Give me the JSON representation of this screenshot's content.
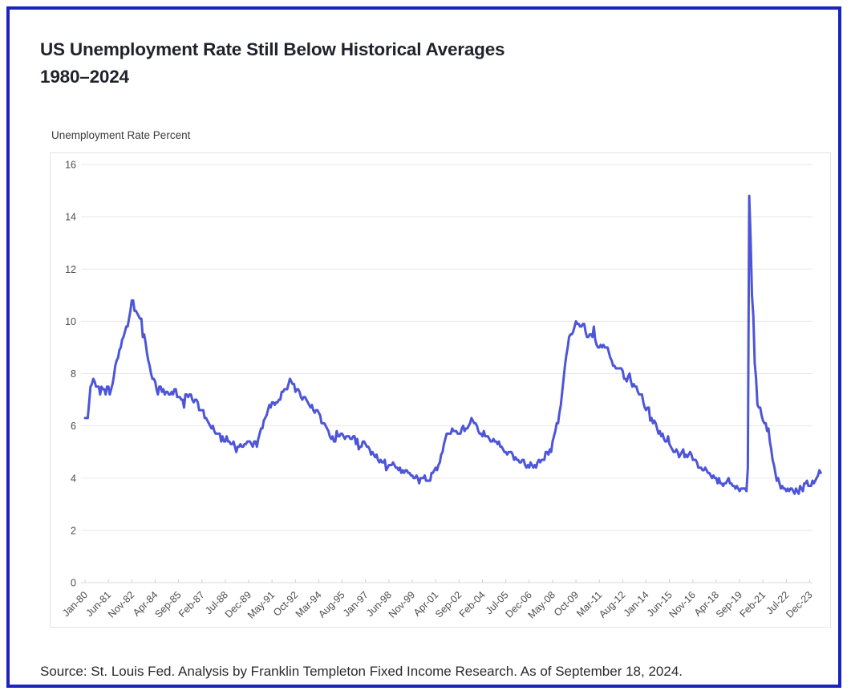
{
  "header": {
    "title_line1": "US Unemployment Rate Still Below Historical Averages",
    "title_line2": "1980–2024"
  },
  "footer": {
    "source": "Source: St. Louis Fed. Analysis by Franklin Templeton Fixed Income Research. As of September 18, 2024."
  },
  "colors": {
    "frame_border": "#1b23c0",
    "line": "#4d55d8",
    "grid": "#e8e8e8",
    "baseline": "#d9d9d9",
    "tick": "#cfcfcf",
    "axis_text": "#4d4d4d",
    "plot_border": "#e3e3e3"
  },
  "chart_data": {
    "type": "line",
    "title": "US Unemployment Rate Still Below Historical Averages 1980–2024",
    "ylabel": "Unemployment Rate Percent",
    "xlabel": "",
    "ylim": [
      0,
      16
    ],
    "yticks": [
      0,
      2,
      4,
      6,
      8,
      10,
      12,
      14,
      16
    ],
    "grid": true,
    "legend_position": "none",
    "x_tick_labels": [
      "Jan-80",
      "Jun-81",
      "Nov-82",
      "Apr-84",
      "Sep-85",
      "Feb-87",
      "Jul-88",
      "Dec-89",
      "May-91",
      "Oct-92",
      "Mar-94",
      "Aug-95",
      "Jan-97",
      "Jun-98",
      "Nov-99",
      "Apr-01",
      "Sep-02",
      "Feb-04",
      "Jul-05",
      "Dec-06",
      "May-08",
      "Oct-09",
      "Mar-11",
      "Aug-12",
      "Jan-14",
      "Jun-15",
      "Nov-16",
      "Apr-18",
      "Sep-19",
      "Feb-21",
      "Jul-22",
      "Dec-23"
    ],
    "x_tick_interval_months": 17,
    "series": [
      {
        "name": "US Unemployment Rate Percent",
        "start": "Jan-1980",
        "end": "Aug-2024",
        "frequency": "monthly",
        "values": [
          6.3,
          6.3,
          6.3,
          6.9,
          7.5,
          7.6,
          7.8,
          7.7,
          7.5,
          7.5,
          7.5,
          7.2,
          7.5,
          7.4,
          7.4,
          7.2,
          7.5,
          7.5,
          7.2,
          7.4,
          7.6,
          7.9,
          8.3,
          8.5,
          8.6,
          8.9,
          9.0,
          9.3,
          9.4,
          9.6,
          9.8,
          9.8,
          10.1,
          10.4,
          10.8,
          10.8,
          10.4,
          10.4,
          10.3,
          10.2,
          10.1,
          10.1,
          9.4,
          9.5,
          9.2,
          8.8,
          8.5,
          8.3,
          8.0,
          7.8,
          7.8,
          7.7,
          7.4,
          7.2,
          7.5,
          7.5,
          7.3,
          7.4,
          7.2,
          7.3,
          7.3,
          7.2,
          7.2,
          7.3,
          7.2,
          7.4,
          7.4,
          7.1,
          7.1,
          7.1,
          7.0,
          7.0,
          6.7,
          7.2,
          7.2,
          7.1,
          7.2,
          7.2,
          7.0,
          6.9,
          7.0,
          7.0,
          6.9,
          6.6,
          6.6,
          6.6,
          6.6,
          6.3,
          6.3,
          6.2,
          6.1,
          6.0,
          5.9,
          6.0,
          5.8,
          5.7,
          5.7,
          5.7,
          5.7,
          5.4,
          5.6,
          5.4,
          5.4,
          5.6,
          5.4,
          5.4,
          5.3,
          5.3,
          5.4,
          5.2,
          5.0,
          5.2,
          5.2,
          5.3,
          5.2,
          5.2,
          5.3,
          5.3,
          5.4,
          5.4,
          5.4,
          5.3,
          5.2,
          5.4,
          5.4,
          5.2,
          5.5,
          5.7,
          5.9,
          5.9,
          6.2,
          6.3,
          6.4,
          6.6,
          6.8,
          6.7,
          6.9,
          6.9,
          6.8,
          6.9,
          6.9,
          7.0,
          7.0,
          7.3,
          7.3,
          7.4,
          7.4,
          7.4,
          7.6,
          7.8,
          7.7,
          7.6,
          7.6,
          7.3,
          7.4,
          7.4,
          7.3,
          7.1,
          7.0,
          7.1,
          7.1,
          7.0,
          6.9,
          6.8,
          6.7,
          6.8,
          6.6,
          6.5,
          6.6,
          6.6,
          6.5,
          6.4,
          6.1,
          6.1,
          6.1,
          6.0,
          5.9,
          5.8,
          5.6,
          5.5,
          5.6,
          5.4,
          5.4,
          5.8,
          5.6,
          5.6,
          5.7,
          5.7,
          5.6,
          5.5,
          5.6,
          5.6,
          5.6,
          5.5,
          5.5,
          5.6,
          5.6,
          5.3,
          5.5,
          5.1,
          5.2,
          5.2,
          5.4,
          5.4,
          5.3,
          5.2,
          5.2,
          5.1,
          4.9,
          5.0,
          4.9,
          4.8,
          4.9,
          4.7,
          4.6,
          4.7,
          4.6,
          4.6,
          4.7,
          4.3,
          4.4,
          4.5,
          4.5,
          4.5,
          4.6,
          4.5,
          4.4,
          4.4,
          4.3,
          4.4,
          4.2,
          4.3,
          4.2,
          4.3,
          4.3,
          4.2,
          4.2,
          4.1,
          4.1,
          4.0,
          4.0,
          4.1,
          4.0,
          3.8,
          4.0,
          4.0,
          4.0,
          4.1,
          3.9,
          3.9,
          3.9,
          3.9,
          4.2,
          4.2,
          4.3,
          4.4,
          4.3,
          4.5,
          4.6,
          4.9,
          5.0,
          5.3,
          5.5,
          5.7,
          5.7,
          5.7,
          5.7,
          5.9,
          5.8,
          5.8,
          5.8,
          5.7,
          5.7,
          5.7,
          5.9,
          6.0,
          5.8,
          5.9,
          5.9,
          6.0,
          6.1,
          6.3,
          6.2,
          6.1,
          6.1,
          6.0,
          5.8,
          5.7,
          5.7,
          5.6,
          5.8,
          5.6,
          5.6,
          5.6,
          5.5,
          5.4,
          5.4,
          5.5,
          5.4,
          5.4,
          5.3,
          5.4,
          5.2,
          5.2,
          5.1,
          5.0,
          5.0,
          4.9,
          5.0,
          5.0,
          5.0,
          4.9,
          4.7,
          4.8,
          4.7,
          4.7,
          4.6,
          4.6,
          4.7,
          4.7,
          4.5,
          4.4,
          4.5,
          4.4,
          4.6,
          4.5,
          4.4,
          4.5,
          4.4,
          4.6,
          4.7,
          4.6,
          4.7,
          4.7,
          4.7,
          5.0,
          5.0,
          4.9,
          5.1,
          5.0,
          5.4,
          5.6,
          5.8,
          6.1,
          6.1,
          6.5,
          6.8,
          7.3,
          7.8,
          8.3,
          8.7,
          9.0,
          9.4,
          9.5,
          9.5,
          9.6,
          9.8,
          10.0,
          9.9,
          9.9,
          9.8,
          9.8,
          9.9,
          9.9,
          9.6,
          9.4,
          9.4,
          9.5,
          9.5,
          9.4,
          9.8,
          9.3,
          9.1,
          9.0,
          9.0,
          9.1,
          9.0,
          9.1,
          9.0,
          9.0,
          9.0,
          8.8,
          8.6,
          8.5,
          8.3,
          8.3,
          8.2,
          8.2,
          8.2,
          8.2,
          8.2,
          8.1,
          7.8,
          7.8,
          7.7,
          7.9,
          8.0,
          7.7,
          7.5,
          7.6,
          7.5,
          7.5,
          7.3,
          7.2,
          7.2,
          7.2,
          6.9,
          6.7,
          6.6,
          6.7,
          6.7,
          6.2,
          6.3,
          6.1,
          6.2,
          6.1,
          5.9,
          5.7,
          5.8,
          5.6,
          5.7,
          5.5,
          5.4,
          5.4,
          5.6,
          5.3,
          5.2,
          5.1,
          5.0,
          5.0,
          5.1,
          5.0,
          4.8,
          4.9,
          5.0,
          5.1,
          4.8,
          4.9,
          4.8,
          4.9,
          5.0,
          4.9,
          4.7,
          4.7,
          4.7,
          4.6,
          4.4,
          4.4,
          4.4,
          4.3,
          4.3,
          4.4,
          4.3,
          4.2,
          4.2,
          4.1,
          4.0,
          4.1,
          4.0,
          4.0,
          3.8,
          4.0,
          3.8,
          3.8,
          3.7,
          3.8,
          3.8,
          3.9,
          4.0,
          3.8,
          3.8,
          3.7,
          3.7,
          3.6,
          3.7,
          3.6,
          3.5,
          3.6,
          3.6,
          3.6,
          3.6,
          3.5,
          4.4,
          14.8,
          13.2,
          11.0,
          10.2,
          8.4,
          7.8,
          6.8,
          6.7,
          6.7,
          6.4,
          6.2,
          6.1,
          6.1,
          5.8,
          5.9,
          5.4,
          5.1,
          4.7,
          4.5,
          4.2,
          3.9,
          4.0,
          3.8,
          3.6,
          3.7,
          3.6,
          3.6,
          3.5,
          3.6,
          3.5,
          3.6,
          3.6,
          3.5,
          3.4,
          3.6,
          3.5,
          3.4,
          3.7,
          3.6,
          3.5,
          3.8,
          3.8,
          3.9,
          3.7,
          3.7,
          3.7,
          3.9,
          3.8,
          3.9,
          4.0,
          4.1,
          4.3,
          4.2
        ]
      }
    ]
  }
}
